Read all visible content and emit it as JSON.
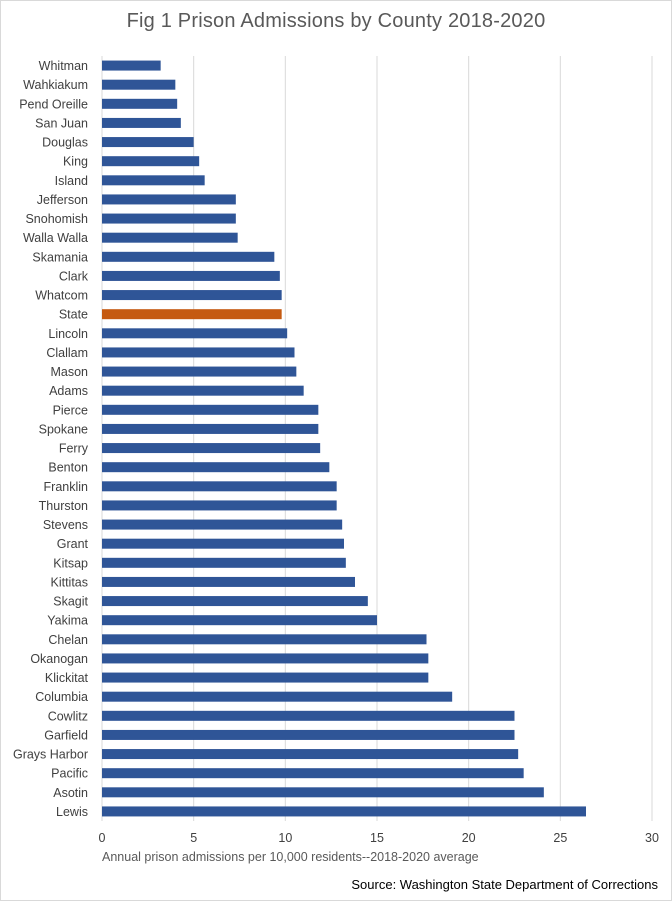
{
  "chart_data": {
    "type": "bar",
    "orientation": "horizontal",
    "title": "Fig 1 Prison Admissions by County 2018-2020",
    "xlabel": "Annual prison admissions per 10,000 residents--2018-2020 average",
    "ylabel": "",
    "xlim": [
      0,
      30
    ],
    "xticks": [
      0,
      5,
      10,
      15,
      20,
      25,
      30
    ],
    "grid": true,
    "source": "Source: Washington State Department of Corrections",
    "colors": {
      "default": "#2F5597",
      "highlight": "#C55A11",
      "grid": "#d9d9d9"
    },
    "highlight_category": "State",
    "categories": [
      "Whitman",
      "Wahkiakum",
      "Pend Oreille",
      "San Juan",
      "Douglas",
      "King",
      "Island",
      "Jefferson",
      "Snohomish",
      "Walla Walla",
      "Skamania",
      "Clark",
      "Whatcom",
      "State",
      "Lincoln",
      "Clallam",
      "Mason",
      "Adams",
      "Pierce",
      "Spokane",
      "Ferry",
      "Benton",
      "Franklin",
      "Thurston",
      "Stevens",
      "Grant",
      "Kitsap",
      "Kittitas",
      "Skagit",
      "Yakima",
      "Chelan",
      "Okanogan",
      "Klickitat",
      "Columbia",
      "Cowlitz",
      "Garfield",
      "Grays Harbor",
      "Pacific",
      "Asotin",
      "Lewis"
    ],
    "values": [
      3.2,
      4.0,
      4.1,
      4.3,
      5.0,
      5.3,
      5.6,
      7.3,
      7.3,
      7.4,
      9.4,
      9.7,
      9.8,
      9.8,
      10.1,
      10.5,
      10.6,
      11.0,
      11.8,
      11.8,
      11.9,
      12.4,
      12.8,
      12.8,
      13.1,
      13.2,
      13.3,
      13.8,
      14.5,
      15.0,
      17.7,
      17.8,
      17.8,
      19.1,
      22.5,
      22.5,
      22.7,
      23.0,
      24.1,
      26.4
    ]
  }
}
